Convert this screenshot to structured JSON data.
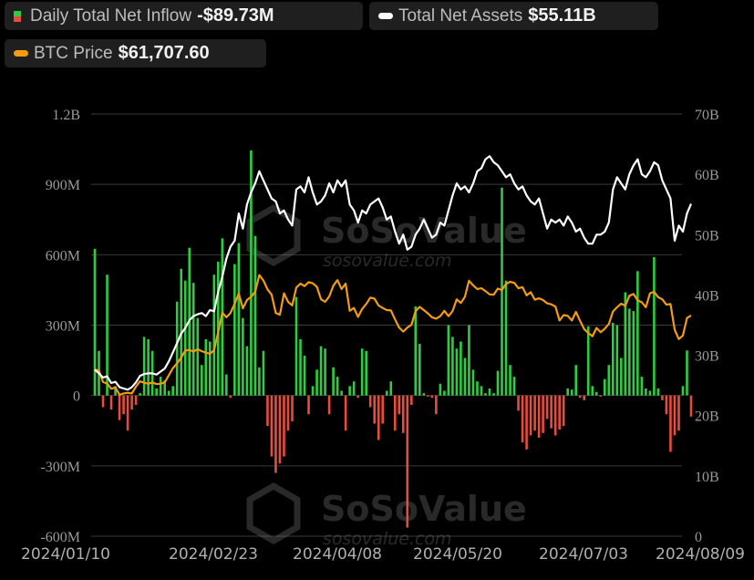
{
  "legend": {
    "inflow": {
      "label": "Daily Total Net Inflow",
      "value": "-$89.73M"
    },
    "assets": {
      "label": "Total Net Assets",
      "value": "$55.11B"
    },
    "btc": {
      "label": "BTC Price",
      "value": "$61,707.60"
    }
  },
  "watermark": {
    "brand": "SoSoValue",
    "url": "sosovalue.com"
  },
  "colors": {
    "inflow_pos": "#2ecc40",
    "inflow_neg": "#e74c3c",
    "assets": "#ffffff",
    "btc": "#f39c12",
    "grid": "#3a3a3a",
    "axis_text": "#9a9a9a"
  },
  "chart_data": {
    "type": "bar+line",
    "x_tick_labels": [
      "2024/01/10",
      "2024/02/23",
      "2024/04/08",
      "2024/05/20",
      "2024/07/03",
      "2024/08/09"
    ],
    "left_axis": {
      "label": "Daily Total Net Inflow",
      "ticks": [
        "1.2B",
        "900M",
        "600M",
        "300M",
        "0",
        "-300M",
        "-600M"
      ],
      "ylim": [
        -600,
        1200
      ],
      "unit": "M USD"
    },
    "right_axis": {
      "label": "Total Net Assets",
      "ticks": [
        "70B",
        "60B",
        "50B",
        "40B",
        "30B",
        "20B",
        "10B",
        "0"
      ],
      "ylim": [
        0,
        70
      ],
      "unit": "B USD"
    },
    "btc_axis": {
      "ylim": [
        0,
        118
      ],
      "unit": "K USD",
      "visible": false
    },
    "grid": true,
    "series": [
      {
        "name": "Daily Total Net Inflow",
        "type": "bar",
        "unit": "M",
        "values": [
          625,
          190,
          -50,
          515,
          -60,
          40,
          -105,
          -80,
          -150,
          -60,
          -40,
          10,
          250,
          240,
          190,
          30,
          80,
          65,
          20,
          40,
          400,
          540,
          490,
          630,
          480,
          330,
          130,
          240,
          230,
          515,
          570,
          670,
          90,
          -10,
          560,
          650,
          330,
          210,
          1045,
          680,
          120,
          190,
          -130,
          -260,
          -330,
          -290,
          -260,
          -150,
          -110,
          420,
          240,
          170,
          -80,
          40,
          110,
          210,
          200,
          -80,
          120,
          80,
          20,
          -150,
          40,
          60,
          -10,
          200,
          190,
          -50,
          -120,
          -190,
          -120,
          20,
          60,
          -150,
          -80,
          -160,
          -563,
          -40,
          380,
          220,
          10,
          -5,
          -10,
          -80,
          50,
          20,
          300,
          250,
          200,
          230,
          160,
          300,
          110,
          60,
          40,
          10,
          30,
          10,
          105,
          886,
          490,
          130,
          80,
          -65,
          -200,
          -230,
          -170,
          -150,
          -180,
          -160,
          -100,
          -140,
          -170,
          -145,
          -130,
          30,
          25,
          130,
          -10,
          -20,
          295,
          40,
          15,
          -5,
          70,
          130,
          310,
          300,
          160,
          440,
          370,
          360,
          530,
          80,
          30,
          20,
          590,
          30,
          -20,
          -80,
          -240,
          -170,
          -150,
          40,
          192,
          -89.73
        ]
      },
      {
        "name": "Total Net Assets",
        "type": "line",
        "unit": "B",
        "values": [
          27.6,
          27.0,
          26.3,
          26.5,
          25.4,
          25.6,
          24.7,
          24.5,
          24.3,
          24.7,
          25.5,
          26.6,
          26.9,
          27.0,
          27.0,
          26.8,
          27.3,
          27.8,
          29.0,
          30.5,
          32.0,
          33.6,
          34.5,
          35.8,
          36.5,
          36.8,
          37.0,
          36.5,
          37.5,
          37.3,
          40.5,
          43.0,
          46.0,
          48.0,
          49.0,
          53.5,
          51.0,
          55.0,
          57.0,
          58.5,
          60.5,
          59.0,
          57.5,
          56.0,
          55.5,
          53.5,
          54.0,
          52.5,
          51.5,
          57.5,
          58.0,
          57.0,
          59.5,
          57.0,
          55.0,
          55.5,
          56.5,
          58.5,
          57.0,
          59.0,
          58.0,
          59.0,
          55.0,
          54.0,
          52.0,
          54.0,
          53.5,
          55.0,
          55.5,
          56.0,
          54.5,
          52.5,
          53.0,
          50.5,
          48.5,
          50.0,
          47.5,
          48.0,
          50.0,
          51.0,
          52.5,
          51.0,
          49.5,
          50.0,
          52.0,
          51.5,
          54.0,
          56.5,
          58.5,
          57.5,
          58.0,
          57.0,
          58.5,
          60.5,
          61.0,
          62.5,
          63.0,
          62.0,
          61.5,
          60.5,
          59.5,
          60.0,
          58.5,
          57.5,
          58.0,
          56.5,
          55.5,
          55.0,
          56.0,
          53.5,
          51.0,
          52.5,
          52.0,
          52.5,
          51.5,
          53.0,
          52.0,
          50.5,
          51.0,
          49.5,
          48.5,
          48.5,
          50.0,
          50.0,
          50.5,
          52.0,
          57.5,
          59.5,
          58.5,
          57.5,
          60.0,
          61.5,
          62.5,
          60.0,
          59.5,
          60.5,
          62.0,
          61.5,
          59.0,
          57.5,
          56.0,
          49.0,
          51.5,
          50.5,
          53.5,
          55.11
        ]
      },
      {
        "name": "BTC Price",
        "type": "line",
        "unit": "K",
        "values": [
          46.6,
          46.3,
          43.1,
          42.7,
          41.2,
          41.6,
          39.5,
          39.9,
          40.1,
          39.9,
          41.8,
          43.3,
          42.9,
          42.6,
          43.0,
          42.5,
          42.6,
          43.0,
          45.0,
          47.0,
          48.3,
          49.9,
          51.9,
          52.1,
          51.6,
          52.3,
          51.7,
          51.3,
          51.0,
          52.0,
          57.0,
          62.5,
          61.2,
          62.4,
          65.0,
          67.8,
          63.7,
          66.0,
          66.9,
          68.3,
          73.0,
          71.5,
          69.0,
          67.5,
          62.4,
          61.9,
          67.9,
          65.5,
          64.5,
          69.5,
          70.6,
          69.9,
          71.0,
          70.7,
          69.7,
          66.2,
          65.5,
          67.0,
          70.0,
          71.6,
          69.1,
          70.6,
          63.0,
          63.8,
          61.3,
          63.5,
          64.9,
          66.7,
          66.4,
          64.5,
          63.8,
          63.2,
          63.1,
          60.6,
          58.3,
          57.2,
          58.3,
          59.1,
          62.9,
          64.1,
          63.2,
          62.3,
          61.2,
          60.8,
          61.5,
          63.0,
          61.5,
          62.9,
          66.2,
          65.2,
          66.9,
          71.4,
          70.1,
          69.1,
          69.3,
          68.5,
          67.6,
          67.5,
          69.2,
          68.8,
          70.5,
          71.1,
          70.8,
          69.3,
          69.6,
          67.3,
          68.2,
          66.1,
          66.5,
          66.0,
          65.1,
          64.8,
          64.2,
          60.3,
          61.8,
          61.6,
          60.3,
          62.7,
          60.2,
          57.9,
          56.8,
          55.9,
          58.2,
          57.0,
          58.0,
          59.3,
          62.8,
          64.0,
          65.0,
          64.4,
          67.2,
          67.7,
          65.9,
          65.4,
          64.0,
          67.9,
          68.3,
          66.8,
          66.2,
          64.7,
          64.9,
          57.7,
          55.1,
          56.1,
          61.0,
          61.7076
        ]
      }
    ]
  }
}
